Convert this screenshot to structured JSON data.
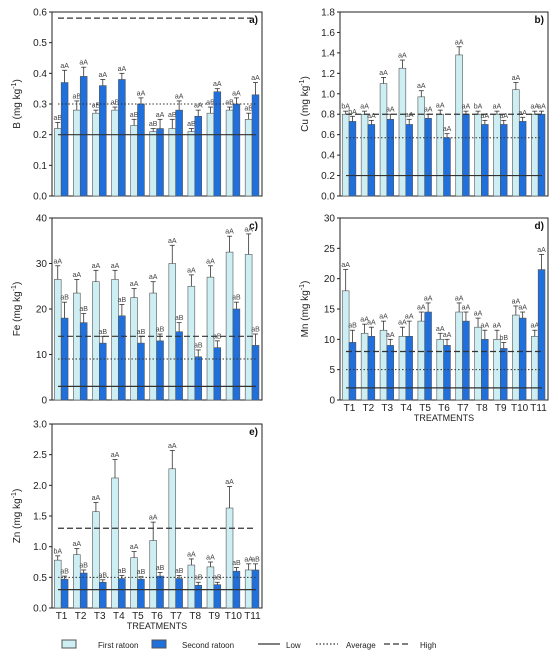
{
  "figure": {
    "legend": {
      "first": "First ratoon",
      "second": "Second ratoon",
      "low": "Low",
      "average": "Average",
      "high": "High"
    },
    "colors": {
      "first": "#cdeef2",
      "second": "#1f6fdc",
      "stroke": "#555555",
      "line": "#333333"
    }
  },
  "chart_data": [
    {
      "type": "bar",
      "panel": "a)",
      "ylabel": "B (mg kg-1)",
      "ylim": [
        0,
        0.6
      ],
      "yticks": [
        "0.0",
        "0.1",
        "0.2",
        "0.3",
        "0.4",
        "0.5",
        "0.6"
      ],
      "categories": [
        "T1",
        "T2",
        "T3",
        "T4",
        "T5",
        "T6",
        "T7",
        "T8",
        "T9",
        "T10",
        "T11"
      ],
      "series": [
        {
          "name": "First ratoon",
          "values": [
            0.22,
            0.28,
            0.27,
            0.28,
            0.23,
            0.21,
            0.22,
            0.21,
            0.27,
            0.28,
            0.25
          ],
          "errors": [
            0.02,
            0.03,
            0.01,
            0.01,
            0.02,
            0.01,
            0.03,
            0.01,
            0.02,
            0.01,
            0.02
          ],
          "labels": [
            "aB",
            "aB",
            "aB",
            "aB",
            "aB",
            "aB",
            "aB",
            "aB",
            "aB",
            "aB",
            "aB"
          ]
        },
        {
          "name": "Second ratoon",
          "values": [
            0.37,
            0.39,
            0.36,
            0.38,
            0.3,
            0.22,
            0.28,
            0.26,
            0.34,
            0.3,
            0.33
          ],
          "errors": [
            0.04,
            0.03,
            0.02,
            0.02,
            0.02,
            0.03,
            0.03,
            0.02,
            0.01,
            0.02,
            0.04
          ],
          "labels": [
            "aA",
            "aA",
            "aA",
            "aA",
            "aA",
            "aA",
            "aA",
            "aA",
            "aA",
            "aA",
            "aA"
          ]
        }
      ],
      "refs": {
        "low": 0.2,
        "average": 0.3,
        "high": 0.58
      }
    },
    {
      "type": "bar",
      "panel": "b)",
      "ylabel": "Cu (mg kg-1)",
      "ylim": [
        0,
        1.8
      ],
      "yticks": [
        "0.0",
        "0.2",
        "0.4",
        "0.6",
        "0.8",
        "1.0",
        "1.2",
        "1.4",
        "1.6",
        "1.8"
      ],
      "categories": [
        "T1",
        "T2",
        "T3",
        "T4",
        "T5",
        "T6",
        "T7",
        "T8",
        "T9",
        "T10",
        "T11"
      ],
      "series": [
        {
          "name": "First ratoon",
          "values": [
            0.8,
            0.8,
            1.1,
            1.25,
            0.97,
            0.8,
            1.38,
            0.8,
            0.8,
            1.04,
            0.8
          ],
          "errors": [
            0.03,
            0.03,
            0.06,
            0.08,
            0.06,
            0.04,
            0.08,
            0.03,
            0.03,
            0.07,
            0.03
          ],
          "labels": [
            "bA",
            "aA",
            "aA",
            "aA",
            "aA",
            "aA",
            "aA",
            "bA",
            "aA",
            "aA",
            "aA"
          ]
        },
        {
          "name": "Second ratoon",
          "values": [
            0.73,
            0.7,
            0.75,
            0.7,
            0.76,
            0.57,
            0.8,
            0.7,
            0.7,
            0.73,
            0.8
          ],
          "errors": [
            0.05,
            0.04,
            0.05,
            0.05,
            0.04,
            0.04,
            0.03,
            0.04,
            0.04,
            0.04,
            0.03
          ],
          "labels": [
            "bA",
            "aA",
            "aA",
            "aA",
            "aA",
            "aA",
            "aA",
            "aA",
            "aA",
            "aA",
            "aA"
          ]
        }
      ],
      "refs": {
        "low": 0.2,
        "average": 0.57,
        "high": 0.8
      }
    },
    {
      "type": "bar",
      "panel": "c)",
      "ylabel": "Fe (mg kg-1)",
      "ylim": [
        0,
        40
      ],
      "yticks": [
        "0",
        "10",
        "20",
        "30",
        "40"
      ],
      "categories": [
        "T1",
        "T2",
        "T3",
        "T4",
        "T5",
        "T6",
        "T7",
        "T8",
        "T9",
        "T10",
        "T11"
      ],
      "series": [
        {
          "name": "First ratoon",
          "values": [
            26.5,
            23.5,
            26,
            26.5,
            22.5,
            23.5,
            30,
            25,
            27,
            32.5,
            32
          ],
          "errors": [
            3,
            3,
            2.5,
            2,
            2,
            2.5,
            4,
            2.5,
            2.5,
            3.5,
            4.5
          ],
          "labels": [
            "aA",
            "aA",
            "aA",
            "aA",
            "aA",
            "aA",
            "aA",
            "aA",
            "aA",
            "aA",
            "aA"
          ]
        },
        {
          "name": "Second ratoon",
          "values": [
            18,
            17,
            12.5,
            18.5,
            12.5,
            13,
            15,
            9.5,
            11.5,
            20,
            12
          ],
          "errors": [
            3.5,
            2,
            1.5,
            2.5,
            1.5,
            1.5,
            2,
            1.5,
            1.5,
            1.5,
            2.5
          ],
          "labels": [
            "aB",
            "aB",
            "aB",
            "aB",
            "aB",
            "aB",
            "aB",
            "aB",
            "aB",
            "aB",
            "aB"
          ]
        }
      ],
      "refs": {
        "low": 3,
        "average": 9,
        "high": 14
      }
    },
    {
      "type": "bar",
      "panel": "d)",
      "ylabel": "Mn (mg kg-1)",
      "xlabel": "TREATMENTS",
      "ylim": [
        0,
        30
      ],
      "yticks": [
        "0",
        "5",
        "10",
        "15",
        "20",
        "25",
        "30"
      ],
      "categories": [
        "T1",
        "T2",
        "T3",
        "T4",
        "T5",
        "T6",
        "T7",
        "T8",
        "T9",
        "T10",
        "T11"
      ],
      "series": [
        {
          "name": "First ratoon",
          "values": [
            18,
            11,
            11.5,
            10.5,
            13,
            10,
            14.5,
            12,
            10,
            14,
            10.5
          ],
          "errors": [
            3.5,
            1.5,
            1.5,
            1.5,
            1.5,
            1,
            1.5,
            1.5,
            1.5,
            1.5,
            1
          ],
          "labels": [
            "aA",
            "aA",
            "aA",
            "aA",
            "aA",
            "aA",
            "aA",
            "aA",
            "aA",
            "aA",
            "aA"
          ]
        },
        {
          "name": "Second ratoon",
          "values": [
            9.5,
            10.5,
            9,
            10.5,
            14.5,
            9,
            13,
            10,
            8.5,
            13.5,
            21.5
          ],
          "errors": [
            2,
            1.5,
            1,
            2.5,
            1.5,
            1,
            1.5,
            1.5,
            1,
            1,
            2.5
          ],
          "labels": [
            "aB",
            "aA",
            "aA",
            "aA",
            "aA",
            "aA",
            "aA",
            "aA",
            "bB",
            "aA",
            "aA"
          ]
        }
      ],
      "refs": {
        "low": 2,
        "average": 5,
        "high": 8
      }
    },
    {
      "type": "bar",
      "panel": "e)",
      "ylabel": "Zn (mg kg-1)",
      "xlabel": "TREATMENTS",
      "ylim": [
        0,
        3.0
      ],
      "yticks": [
        "0.0",
        "0.5",
        "1.0",
        "1.5",
        "2.0",
        "2.5",
        "3.0"
      ],
      "categories": [
        "T1",
        "T2",
        "T3",
        "T4",
        "T5",
        "T6",
        "T7",
        "T8",
        "T9",
        "T10",
        "T11"
      ],
      "series": [
        {
          "name": "First ratoon",
          "values": [
            0.78,
            0.87,
            1.57,
            2.12,
            0.82,
            1.1,
            2.27,
            0.7,
            0.67,
            1.63,
            0.62
          ],
          "errors": [
            0.07,
            0.1,
            0.15,
            0.3,
            0.1,
            0.3,
            0.3,
            0.1,
            0.08,
            0.35,
            0.1
          ],
          "labels": [
            "bA",
            "aA",
            "aA",
            "aA",
            "aA",
            "aA",
            "aA",
            "aA",
            "aA",
            "aA",
            "aA"
          ]
        },
        {
          "name": "Second ratoon",
          "values": [
            0.47,
            0.57,
            0.42,
            0.48,
            0.47,
            0.52,
            0.48,
            0.37,
            0.38,
            0.6,
            0.62
          ],
          "errors": [
            0.05,
            0.05,
            0.04,
            0.05,
            0.04,
            0.06,
            0.05,
            0.05,
            0.04,
            0.06,
            0.1
          ],
          "labels": [
            "aB",
            "aB",
            "aB",
            "aB",
            "aB",
            "aB",
            "aB",
            "aB",
            "aB",
            "aB",
            "aB"
          ]
        }
      ],
      "refs": {
        "low": 0.3,
        "average": 0.5,
        "high": 1.3
      }
    }
  ]
}
